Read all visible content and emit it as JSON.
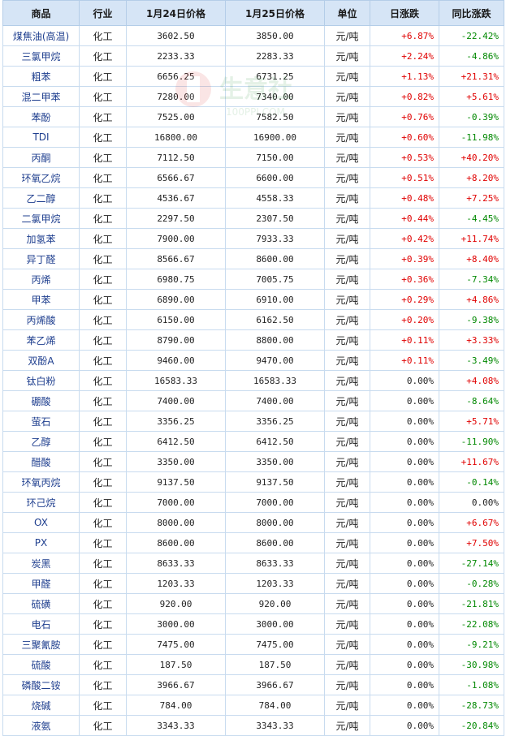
{
  "table": {
    "headers": [
      "商品",
      "行业",
      "1月24日价格",
      "1月25日价格",
      "单位",
      "日涨跌",
      "同比涨跌"
    ],
    "rows": [
      {
        "name": "煤焦油(高温)",
        "industry": "化工",
        "p1": "3602.50",
        "p2": "3850.00",
        "unit": "元/吨",
        "day": "+6.87%",
        "yoy": "-22.42%"
      },
      {
        "name": "三氯甲烷",
        "industry": "化工",
        "p1": "2233.33",
        "p2": "2283.33",
        "unit": "元/吨",
        "day": "+2.24%",
        "yoy": "-4.86%"
      },
      {
        "name": "粗苯",
        "industry": "化工",
        "p1": "6656.25",
        "p2": "6731.25",
        "unit": "元/吨",
        "day": "+1.13%",
        "yoy": "+21.31%"
      },
      {
        "name": "混二甲苯",
        "industry": "化工",
        "p1": "7280.00",
        "p2": "7340.00",
        "unit": "元/吨",
        "day": "+0.82%",
        "yoy": "+5.61%"
      },
      {
        "name": "苯酚",
        "industry": "化工",
        "p1": "7525.00",
        "p2": "7582.50",
        "unit": "元/吨",
        "day": "+0.76%",
        "yoy": "-0.39%"
      },
      {
        "name": "TDI",
        "industry": "化工",
        "p1": "16800.00",
        "p2": "16900.00",
        "unit": "元/吨",
        "day": "+0.60%",
        "yoy": "-11.98%"
      },
      {
        "name": "丙酮",
        "industry": "化工",
        "p1": "7112.50",
        "p2": "7150.00",
        "unit": "元/吨",
        "day": "+0.53%",
        "yoy": "+40.20%"
      },
      {
        "name": "环氧乙烷",
        "industry": "化工",
        "p1": "6566.67",
        "p2": "6600.00",
        "unit": "元/吨",
        "day": "+0.51%",
        "yoy": "+8.20%"
      },
      {
        "name": "乙二醇",
        "industry": "化工",
        "p1": "4536.67",
        "p2": "4558.33",
        "unit": "元/吨",
        "day": "+0.48%",
        "yoy": "+7.25%"
      },
      {
        "name": "二氯甲烷",
        "industry": "化工",
        "p1": "2297.50",
        "p2": "2307.50",
        "unit": "元/吨",
        "day": "+0.44%",
        "yoy": "-4.45%"
      },
      {
        "name": "加氢苯",
        "industry": "化工",
        "p1": "7900.00",
        "p2": "7933.33",
        "unit": "元/吨",
        "day": "+0.42%",
        "yoy": "+11.74%"
      },
      {
        "name": "异丁醛",
        "industry": "化工",
        "p1": "8566.67",
        "p2": "8600.00",
        "unit": "元/吨",
        "day": "+0.39%",
        "yoy": "+8.40%"
      },
      {
        "name": "丙烯",
        "industry": "化工",
        "p1": "6980.75",
        "p2": "7005.75",
        "unit": "元/吨",
        "day": "+0.36%",
        "yoy": "-7.34%"
      },
      {
        "name": "甲苯",
        "industry": "化工",
        "p1": "6890.00",
        "p2": "6910.00",
        "unit": "元/吨",
        "day": "+0.29%",
        "yoy": "+4.86%"
      },
      {
        "name": "丙烯酸",
        "industry": "化工",
        "p1": "6150.00",
        "p2": "6162.50",
        "unit": "元/吨",
        "day": "+0.20%",
        "yoy": "-9.38%"
      },
      {
        "name": "苯乙烯",
        "industry": "化工",
        "p1": "8790.00",
        "p2": "8800.00",
        "unit": "元/吨",
        "day": "+0.11%",
        "yoy": "+3.33%"
      },
      {
        "name": "双酚A",
        "industry": "化工",
        "p1": "9460.00",
        "p2": "9470.00",
        "unit": "元/吨",
        "day": "+0.11%",
        "yoy": "-3.49%"
      },
      {
        "name": "钛白粉",
        "industry": "化工",
        "p1": "16583.33",
        "p2": "16583.33",
        "unit": "元/吨",
        "day": "0.00%",
        "yoy": "+4.08%"
      },
      {
        "name": "硼酸",
        "industry": "化工",
        "p1": "7400.00",
        "p2": "7400.00",
        "unit": "元/吨",
        "day": "0.00%",
        "yoy": "-8.64%"
      },
      {
        "name": "萤石",
        "industry": "化工",
        "p1": "3356.25",
        "p2": "3356.25",
        "unit": "元/吨",
        "day": "0.00%",
        "yoy": "+5.71%"
      },
      {
        "name": "乙醇",
        "industry": "化工",
        "p1": "6412.50",
        "p2": "6412.50",
        "unit": "元/吨",
        "day": "0.00%",
        "yoy": "-11.90%"
      },
      {
        "name": "醋酸",
        "industry": "化工",
        "p1": "3350.00",
        "p2": "3350.00",
        "unit": "元/吨",
        "day": "0.00%",
        "yoy": "+11.67%"
      },
      {
        "name": "环氧丙烷",
        "industry": "化工",
        "p1": "9137.50",
        "p2": "9137.50",
        "unit": "元/吨",
        "day": "0.00%",
        "yoy": "-0.14%"
      },
      {
        "name": "环己烷",
        "industry": "化工",
        "p1": "7000.00",
        "p2": "7000.00",
        "unit": "元/吨",
        "day": "0.00%",
        "yoy": "0.00%"
      },
      {
        "name": "OX",
        "industry": "化工",
        "p1": "8000.00",
        "p2": "8000.00",
        "unit": "元/吨",
        "day": "0.00%",
        "yoy": "+6.67%"
      },
      {
        "name": "PX",
        "industry": "化工",
        "p1": "8600.00",
        "p2": "8600.00",
        "unit": "元/吨",
        "day": "0.00%",
        "yoy": "+7.50%"
      },
      {
        "name": "炭黑",
        "industry": "化工",
        "p1": "8633.33",
        "p2": "8633.33",
        "unit": "元/吨",
        "day": "0.00%",
        "yoy": "-27.14%"
      },
      {
        "name": "甲醛",
        "industry": "化工",
        "p1": "1203.33",
        "p2": "1203.33",
        "unit": "元/吨",
        "day": "0.00%",
        "yoy": "-0.28%"
      },
      {
        "name": "硫磺",
        "industry": "化工",
        "p1": "920.00",
        "p2": "920.00",
        "unit": "元/吨",
        "day": "0.00%",
        "yoy": "-21.81%"
      },
      {
        "name": "电石",
        "industry": "化工",
        "p1": "3000.00",
        "p2": "3000.00",
        "unit": "元/吨",
        "day": "0.00%",
        "yoy": "-22.08%"
      },
      {
        "name": "三聚氰胺",
        "industry": "化工",
        "p1": "7475.00",
        "p2": "7475.00",
        "unit": "元/吨",
        "day": "0.00%",
        "yoy": "-9.21%"
      },
      {
        "name": "硫酸",
        "industry": "化工",
        "p1": "187.50",
        "p2": "187.50",
        "unit": "元/吨",
        "day": "0.00%",
        "yoy": "-30.98%"
      },
      {
        "name": "磷酸二铵",
        "industry": "化工",
        "p1": "3966.67",
        "p2": "3966.67",
        "unit": "元/吨",
        "day": "0.00%",
        "yoy": "-1.08%"
      },
      {
        "name": "烧碱",
        "industry": "化工",
        "p1": "784.00",
        "p2": "784.00",
        "unit": "元/吨",
        "day": "0.00%",
        "yoy": "-28.73%"
      },
      {
        "name": "液氨",
        "industry": "化工",
        "p1": "3343.33",
        "p2": "3343.33",
        "unit": "元/吨",
        "day": "0.00%",
        "yoy": "-20.84%"
      }
    ]
  },
  "watermark": {
    "brand": "生意社",
    "site": "100PPI.COM"
  },
  "colors": {
    "up": "#e00000",
    "down": "#008800",
    "header_bg": "#d6e5f6",
    "name_text": "#1f3f8f"
  }
}
